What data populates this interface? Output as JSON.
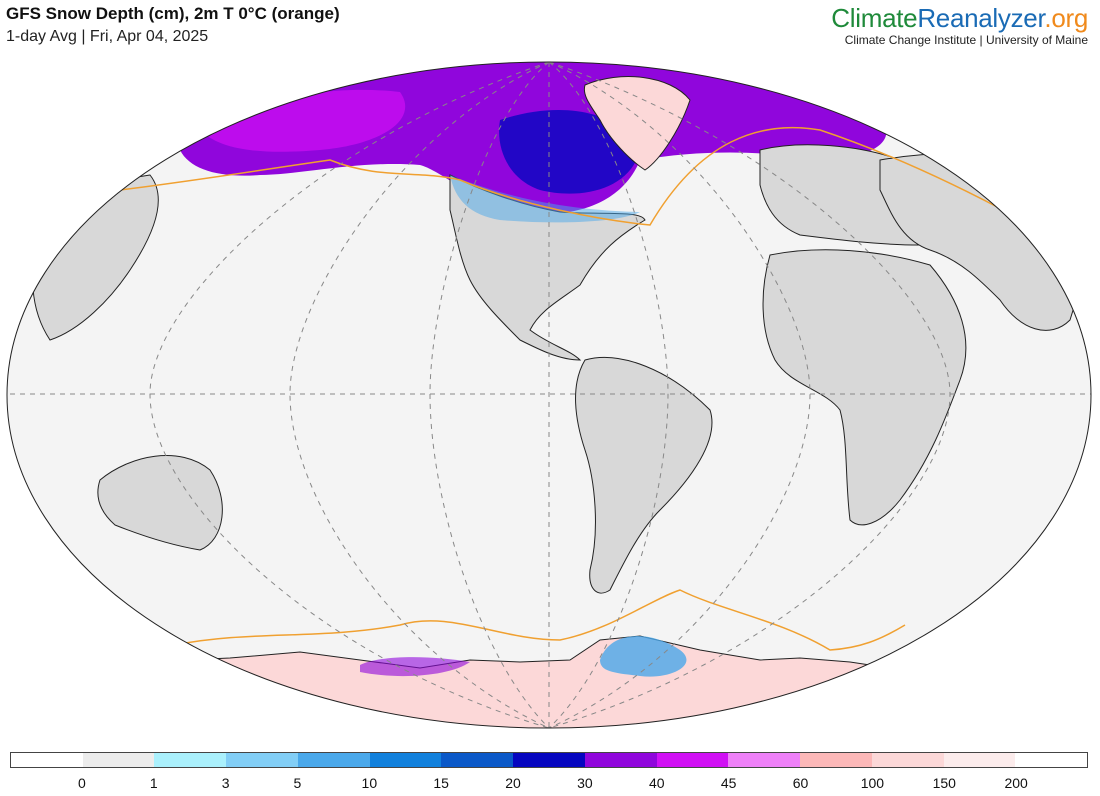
{
  "header": {
    "title": "GFS Snow Depth (cm), 2m T 0°C (orange)",
    "subtitle": "1-day Avg | Fri, Apr 04, 2025"
  },
  "brand": {
    "name_part1": "Climate",
    "name_part2": "Reanalyzer",
    "name_part3": ".org",
    "tagline": "Climate Change Institute | University of Maine"
  },
  "colors": {
    "ocean": "#f4f4f4",
    "land": "#d8d8d8",
    "freezing_line": "#f0a030",
    "graticule": "#888888"
  },
  "legend": {
    "colors": [
      "#ffffff",
      "#ececec",
      "#aaf0fc",
      "#82cef6",
      "#4aa8ea",
      "#1180dc",
      "#0a58c8",
      "#0606c0",
      "#9006dc",
      "#d010f4",
      "#ee80f8",
      "#fcb8b8",
      "#fcd8d8",
      "#fcecec",
      "#ffffff"
    ],
    "ticks": [
      "0",
      "1",
      "3",
      "5",
      "10",
      "15",
      "20",
      "30",
      "40",
      "45",
      "60",
      "100",
      "150",
      "200"
    ]
  }
}
